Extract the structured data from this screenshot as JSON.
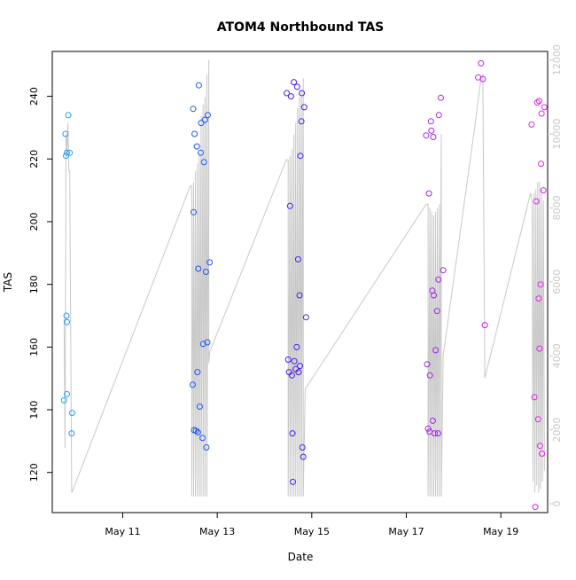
{
  "chart_data": {
    "type": "scatter",
    "title": "ATOM4 Northbound TAS",
    "xlabel": "Date",
    "ylabel": "TAS",
    "x_ticks": [
      "May 11",
      "May 13",
      "May 15",
      "May 17",
      "May 19"
    ],
    "x_tick_days": [
      11,
      13,
      15,
      17,
      19
    ],
    "xlim": [
      9.51,
      19.99
    ],
    "ylim": [
      107.2,
      254.3
    ],
    "y_ticks": [
      120,
      140,
      160,
      180,
      200,
      220,
      240
    ],
    "right_axis": {
      "ylim": [
        -240,
        12230
      ],
      "ticks": [
        0,
        2000,
        4000,
        6000,
        8000,
        10000,
        12000
      ],
      "color": "#c8c8c8"
    },
    "grid": false,
    "legend": "none",
    "series": [
      {
        "color": "#2a9df4",
        "points": [
          [
            9.76,
            143
          ],
          [
            9.79,
            228
          ],
          [
            9.8,
            221
          ],
          [
            9.81,
            170
          ],
          [
            9.82,
            145
          ],
          [
            9.82,
            168
          ],
          [
            9.82,
            222
          ],
          [
            9.85,
            234
          ],
          [
            9.88,
            222
          ],
          [
            9.92,
            132.5
          ],
          [
            9.93,
            139
          ]
        ]
      },
      {
        "color": "#1d58f0",
        "points": [
          [
            12.48,
            148
          ],
          [
            12.49,
            236
          ],
          [
            12.5,
            203
          ],
          [
            12.51,
            133.5
          ],
          [
            12.52,
            228
          ],
          [
            12.55,
            133.3
          ],
          [
            12.57,
            224
          ],
          [
            12.58,
            152
          ],
          [
            12.59,
            132.8
          ],
          [
            12.6,
            185
          ],
          [
            12.61,
            243.5
          ],
          [
            12.63,
            141
          ],
          [
            12.65,
            222
          ],
          [
            12.66,
            231.5
          ],
          [
            12.69,
            131
          ],
          [
            12.7,
            161
          ],
          [
            12.72,
            219
          ],
          [
            12.74,
            232.5
          ],
          [
            12.76,
            184
          ],
          [
            12.77,
            128
          ],
          [
            12.79,
            161.5
          ],
          [
            12.8,
            234
          ],
          [
            12.84,
            187
          ]
        ]
      },
      {
        "color": "#4b1ff0",
        "points": [
          [
            14.47,
            241
          ],
          [
            14.5,
            156
          ],
          [
            14.52,
            152
          ],
          [
            14.54,
            205
          ],
          [
            14.56,
            240
          ],
          [
            14.58,
            151
          ],
          [
            14.59,
            132.5
          ],
          [
            14.6,
            117
          ],
          [
            14.62,
            244.5
          ],
          [
            14.63,
            155.5
          ],
          [
            14.66,
            153
          ],
          [
            14.68,
            160
          ],
          [
            14.69,
            243
          ],
          [
            14.71,
            188
          ],
          [
            14.72,
            152
          ],
          [
            14.74,
            176.5
          ],
          [
            14.75,
            154
          ],
          [
            14.76,
            221
          ],
          [
            14.78,
            232
          ],
          [
            14.79,
            241
          ],
          [
            14.8,
            128
          ],
          [
            14.82,
            125
          ],
          [
            14.84,
            236.5
          ],
          [
            14.88,
            169.5
          ]
        ]
      },
      {
        "color": "#a324e6",
        "points": [
          [
            17.42,
            227.5
          ],
          [
            17.44,
            154.5
          ],
          [
            17.46,
            134
          ],
          [
            17.48,
            209
          ],
          [
            17.49,
            133
          ],
          [
            17.5,
            151
          ],
          [
            17.52,
            232
          ],
          [
            17.53,
            229
          ],
          [
            17.55,
            178
          ],
          [
            17.56,
            136.5
          ],
          [
            17.57,
            227
          ],
          [
            17.58,
            176.5
          ],
          [
            17.6,
            132.5
          ],
          [
            17.62,
            159
          ],
          [
            17.65,
            171.5
          ],
          [
            17.67,
            132.5
          ],
          [
            17.68,
            181.5
          ],
          [
            17.69,
            234
          ],
          [
            17.73,
            239.5
          ],
          [
            17.78,
            184.5
          ]
        ]
      },
      {
        "color": "#c322e8",
        "points": [
          [
            18.52,
            246
          ],
          [
            18.58,
            250.5
          ],
          [
            18.62,
            245.5
          ],
          [
            18.66,
            167
          ]
        ]
      },
      {
        "color": "#e026e6",
        "points": [
          [
            19.65,
            231
          ],
          [
            19.71,
            144
          ],
          [
            19.73,
            109
          ],
          [
            19.75,
            206.5
          ],
          [
            19.77,
            238
          ],
          [
            19.79,
            137
          ],
          [
            19.8,
            175.5
          ],
          [
            19.81,
            238.5
          ],
          [
            19.82,
            159.5
          ],
          [
            19.83,
            128.5
          ],
          [
            19.84,
            180
          ],
          [
            19.85,
            218.5
          ],
          [
            19.86,
            234.5
          ],
          [
            19.87,
            126
          ],
          [
            19.9,
            210
          ],
          [
            19.92,
            236.5
          ]
        ]
      }
    ],
    "line_series": {
      "axis": "right",
      "color": "#c8c8c8",
      "x": [
        9.76,
        9.78,
        9.8,
        9.82,
        9.84,
        9.86,
        9.88,
        9.92,
        9.94,
        12.43,
        12.46,
        12.46,
        12.5,
        12.5,
        12.54,
        12.54,
        12.58,
        12.58,
        12.62,
        12.62,
        12.66,
        12.66,
        12.7,
        12.7,
        12.74,
        12.74,
        12.78,
        12.78,
        12.82,
        12.82,
        12.84,
        14.46,
        14.5,
        14.5,
        14.54,
        14.54,
        14.58,
        14.58,
        14.62,
        14.62,
        14.66,
        14.66,
        14.7,
        14.7,
        14.74,
        14.74,
        14.78,
        14.78,
        14.82,
        14.82,
        14.86,
        17.42,
        17.46,
        17.46,
        17.5,
        17.5,
        17.54,
        17.54,
        17.58,
        17.58,
        17.62,
        17.62,
        17.66,
        17.66,
        17.7,
        17.7,
        17.74,
        17.74,
        17.78,
        18.46,
        18.58,
        18.62,
        18.66,
        18.66,
        19.63,
        19.66,
        19.68,
        19.7,
        19.72,
        19.74,
        19.76,
        19.78,
        19.8,
        19.82,
        19.84,
        19.86,
        19.88,
        19.9,
        19.92
      ],
      "y": [
        5000,
        1500,
        10000,
        9500,
        10300,
        9000,
        9000,
        300,
        350,
        8600,
        8600,
        200,
        8700,
        200,
        9000,
        200,
        9200,
        200,
        9500,
        200,
        10500,
        200,
        10800,
        200,
        11000,
        200,
        11600,
        200,
        12000,
        3800,
        4100,
        9300,
        9300,
        200,
        9400,
        200,
        9600,
        200,
        10000,
        200,
        10300,
        200,
        10700,
        200,
        11000,
        200,
        11200,
        200,
        11500,
        200,
        3100,
        8100,
        8100,
        200,
        8000,
        200,
        7900,
        200,
        7800,
        200,
        7900,
        200,
        8000,
        200,
        8100,
        200,
        10000,
        200,
        4000,
        10300,
        11500,
        11600,
        3400,
        3400,
        8400,
        8200,
        600,
        8400,
        300,
        8500,
        500,
        8700,
        300,
        8700,
        400,
        8500,
        600,
        8200,
        900
      ]
    }
  }
}
